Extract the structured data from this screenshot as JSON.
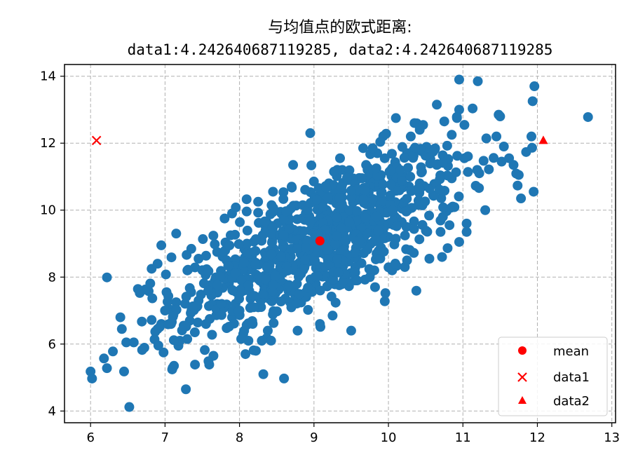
{
  "chart_data": {
    "type": "scatter",
    "title_line1": "与均值点的欧式距离:",
    "title_line2": "data1:4.242640687119285, data2:4.242640687119285",
    "xlabel": "",
    "ylabel": "",
    "xlim": [
      5.65,
      13.05
    ],
    "ylim": [
      3.65,
      14.35
    ],
    "xticks": [
      6,
      7,
      8,
      9,
      10,
      11,
      12,
      13
    ],
    "yticks": [
      4,
      6,
      8,
      10,
      12,
      14
    ],
    "grid": true,
    "legend_position": "lower right",
    "legend": [
      {
        "label": "mean",
        "marker": "circle",
        "color": "#ff0000"
      },
      {
        "label": "data1",
        "marker": "x",
        "color": "#ff0000"
      },
      {
        "label": "data2",
        "marker": "triangle",
        "color": "#ff0000"
      }
    ],
    "scatter_color": "#1f77b4",
    "scatter_points_count": 1000,
    "scatter_points": [
      [
        6.0,
        5.18
      ],
      [
        6.02,
        4.97
      ],
      [
        6.18,
        5.57
      ],
      [
        6.22,
        5.28
      ],
      [
        6.3,
        5.78
      ],
      [
        6.4,
        6.8
      ],
      [
        6.42,
        6.45
      ],
      [
        6.45,
        5.18
      ],
      [
        6.48,
        6.05
      ],
      [
        6.52,
        4.12
      ],
      [
        6.58,
        6.05
      ],
      [
        6.82,
        6.72
      ],
      [
        6.9,
        6.45
      ],
      [
        6.98,
        5.75
      ],
      [
        6.22,
        7.99
      ],
      [
        6.78,
        7.58
      ],
      [
        6.82,
        8.25
      ],
      [
        6.9,
        8.4
      ],
      [
        6.95,
        8.95
      ],
      [
        7.02,
        7.55
      ],
      [
        7.08,
        7.02
      ],
      [
        7.12,
        5.35
      ],
      [
        7.18,
        5.95
      ],
      [
        7.2,
        6.1
      ],
      [
        7.28,
        4.65
      ],
      [
        7.15,
        9.3
      ],
      [
        7.3,
        8.2
      ],
      [
        7.45,
        8.55
      ],
      [
        7.6,
        6.75
      ],
      [
        7.65,
        5.65
      ],
      [
        7.7,
        8.75
      ],
      [
        7.8,
        9.75
      ],
      [
        7.9,
        9.9
      ],
      [
        7.95,
        10.08
      ],
      [
        8.0,
        7.0
      ],
      [
        8.08,
        5.7
      ],
      [
        8.12,
        6.1
      ],
      [
        8.22,
        5.8
      ],
      [
        8.32,
        5.1
      ],
      [
        8.38,
        6.4
      ],
      [
        8.05,
        6.3
      ],
      [
        8.25,
        10.25
      ],
      [
        8.45,
        10.55
      ],
      [
        8.55,
        9.95
      ],
      [
        8.7,
        10.7
      ],
      [
        8.72,
        11.35
      ],
      [
        8.78,
        6.4
      ],
      [
        8.92,
        7.02
      ],
      [
        8.95,
        12.3
      ],
      [
        9.08,
        6.6
      ],
      [
        9.2,
        10.8
      ],
      [
        9.25,
        6.85
      ],
      [
        9.35,
        11.55
      ],
      [
        9.38,
        11.2
      ],
      [
        9.5,
        6.4
      ],
      [
        9.65,
        9.0
      ],
      [
        9.82,
        7.7
      ],
      [
        9.85,
        11.7
      ],
      [
        10.0,
        9.2
      ],
      [
        10.05,
        11.25
      ],
      [
        10.1,
        12.75
      ],
      [
        10.22,
        8.3
      ],
      [
        10.3,
        12.2
      ],
      [
        10.35,
        12.6
      ],
      [
        10.42,
        12.4
      ],
      [
        10.55,
        8.55
      ],
      [
        10.65,
        13.15
      ],
      [
        10.72,
        8.6
      ],
      [
        10.75,
        12.65
      ],
      [
        10.85,
        12.25
      ],
      [
        10.92,
        12.75
      ],
      [
        10.95,
        13.0
      ],
      [
        10.95,
        13.9
      ],
      [
        11.02,
        11.55
      ],
      [
        11.05,
        9.6
      ],
      [
        11.2,
        13.85
      ],
      [
        11.22,
        11.1
      ],
      [
        11.3,
        10.0
      ],
      [
        11.45,
        12.2
      ],
      [
        11.48,
        12.85
      ],
      [
        11.5,
        12.8
      ],
      [
        11.52,
        11.45
      ],
      [
        11.55,
        11.9
      ],
      [
        11.62,
        11.55
      ],
      [
        11.68,
        11.35
      ],
      [
        11.75,
        11.05
      ],
      [
        11.78,
        10.35
      ],
      [
        11.92,
        12.2
      ],
      [
        11.95,
        10.55
      ],
      [
        11.96,
        13.7
      ],
      [
        12.68,
        12.78
      ],
      [
        11.05,
        9.35
      ],
      [
        10.95,
        9.05
      ],
      [
        10.82,
        9.55
      ],
      [
        10.7,
        9.35
      ],
      [
        10.25,
        8.5
      ],
      [
        10.05,
        8.2
      ],
      [
        9.75,
        8.0
      ],
      [
        9.55,
        7.9
      ],
      [
        8.98,
        7.6
      ],
      [
        8.68,
        7.25
      ],
      [
        8.4,
        7.35
      ],
      [
        8.15,
        7.1
      ],
      [
        7.9,
        6.8
      ],
      [
        7.55,
        6.6
      ],
      [
        7.4,
        6.35
      ],
      [
        7.25,
        6.55
      ],
      [
        7.45,
        7.3
      ],
      [
        7.7,
        7.2
      ],
      [
        7.85,
        7.8
      ],
      [
        7.95,
        8.3
      ],
      [
        8.1,
        9.0
      ],
      [
        8.35,
        9.4
      ],
      [
        8.6,
        9.65
      ],
      [
        8.85,
        10.15
      ],
      [
        9.1,
        10.45
      ],
      [
        9.45,
        10.95
      ],
      [
        9.7,
        11.35
      ],
      [
        9.95,
        11.55
      ],
      [
        10.25,
        11.7
      ],
      [
        10.45,
        11.15
      ],
      [
        10.65,
        11.35
      ],
      [
        10.85,
        10.95
      ],
      [
        10.6,
        10.45
      ],
      [
        10.4,
        10.65
      ],
      [
        10.2,
        10.2
      ],
      [
        9.9,
        10.05
      ],
      [
        9.65,
        9.7
      ],
      [
        9.4,
        9.55
      ],
      [
        9.15,
        9.3
      ],
      [
        8.85,
        9.05
      ],
      [
        8.6,
        8.75
      ],
      [
        8.35,
        8.45
      ],
      [
        8.1,
        8.2
      ],
      [
        7.85,
        8.05
      ],
      [
        7.6,
        7.75
      ],
      [
        7.35,
        7.55
      ],
      [
        7.15,
        7.25
      ],
      [
        7.0,
        7.0
      ],
      [
        6.95,
        6.6
      ]
    ],
    "scatter_cluster": {
      "center": [
        9.08,
        9.08
      ],
      "sd": [
        0.95,
        1.35
      ],
      "corr": 0.72,
      "seed": 12345
    },
    "mean_point": {
      "label": "mean",
      "x": 9.08,
      "y": 9.08,
      "color": "#ff0000"
    },
    "data1_point": {
      "label": "data1",
      "x": 6.08,
      "y": 12.08,
      "color": "#ff0000"
    },
    "data2_point": {
      "label": "data2",
      "x": 12.08,
      "y": 12.08,
      "color": "#ff0000"
    }
  }
}
